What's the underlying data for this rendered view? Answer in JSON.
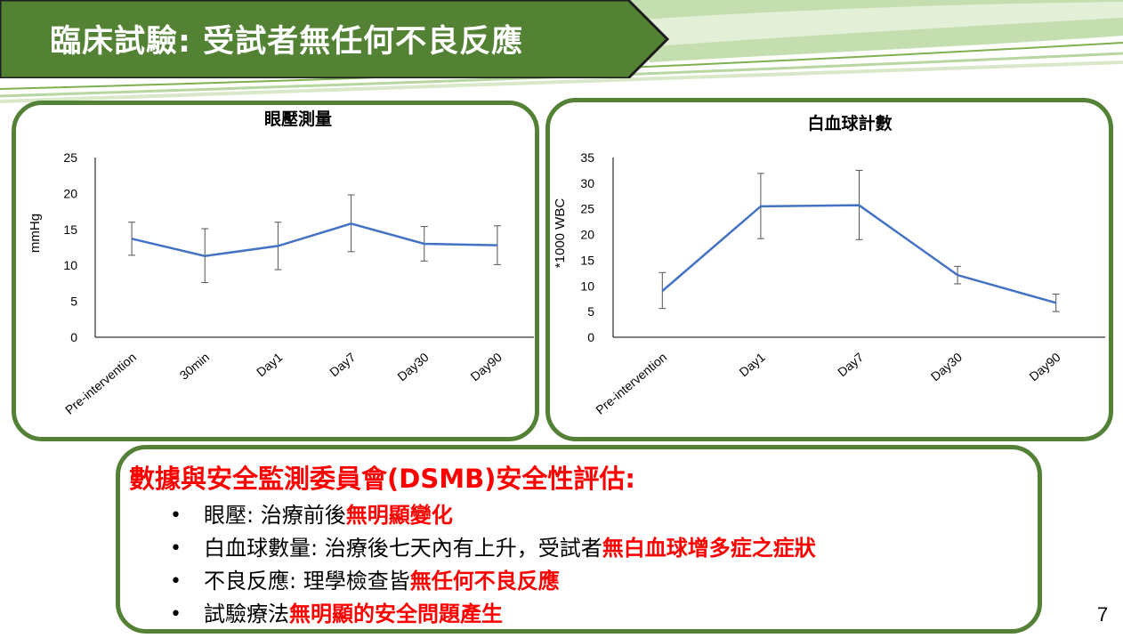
{
  "slide": {
    "title": "臨床試驗: 受試者無任何不良反應",
    "page_number": "7",
    "colors": {
      "banner": "#548235",
      "banner_border": "#1f1f1f",
      "panel_border": "#538135",
      "series": "#4472c4",
      "highlight": "#ff0000"
    }
  },
  "summary": {
    "heading": "數據與安全監測委員會(DSMB)安全性評估:",
    "bullets": [
      {
        "normal": "眼壓: 治療前後",
        "highlight": "無明顯變化"
      },
      {
        "normal": "白血球數量: 治療後七天內有上升，受試者",
        "highlight": "無白血球增多症之症狀"
      },
      {
        "normal": "不良反應: 理學檢查皆",
        "highlight": "無任何不良反應"
      },
      {
        "normal": "試驗療法",
        "highlight": "無明顯的安全問題產生"
      }
    ]
  },
  "chart_data": [
    {
      "type": "line",
      "title": "眼壓測量",
      "xlabel": "",
      "ylabel": "mmHg",
      "categories": [
        "Pre-intervention",
        "30min",
        "Day1",
        "Day7",
        "Day30",
        "Day90"
      ],
      "values": [
        13.7,
        11.3,
        12.7,
        15.8,
        13.0,
        12.8
      ],
      "error_low": [
        11.4,
        7.6,
        9.4,
        11.9,
        10.6,
        10.1
      ],
      "error_high": [
        16.0,
        15.1,
        16.0,
        19.8,
        15.4,
        15.5
      ],
      "ylim": [
        0,
        25
      ],
      "yticks": [
        0,
        5,
        10,
        15,
        20,
        25
      ],
      "grid": false,
      "legend": "none"
    },
    {
      "type": "line",
      "title": "白血球計數",
      "xlabel": "",
      "ylabel": "*1000 WBC",
      "categories": [
        "Pre-intervention",
        "Day1",
        "Day7",
        "Day30",
        "Day90"
      ],
      "values": [
        9.0,
        25.5,
        25.7,
        12.1,
        6.7
      ],
      "error_low": [
        5.6,
        19.2,
        19.0,
        10.4,
        5.0
      ],
      "error_high": [
        12.6,
        31.9,
        32.5,
        13.8,
        8.4
      ],
      "ylim": [
        0,
        35
      ],
      "yticks": [
        0,
        5,
        10,
        15,
        20,
        25,
        30,
        35
      ],
      "grid": false,
      "legend": "none"
    }
  ]
}
